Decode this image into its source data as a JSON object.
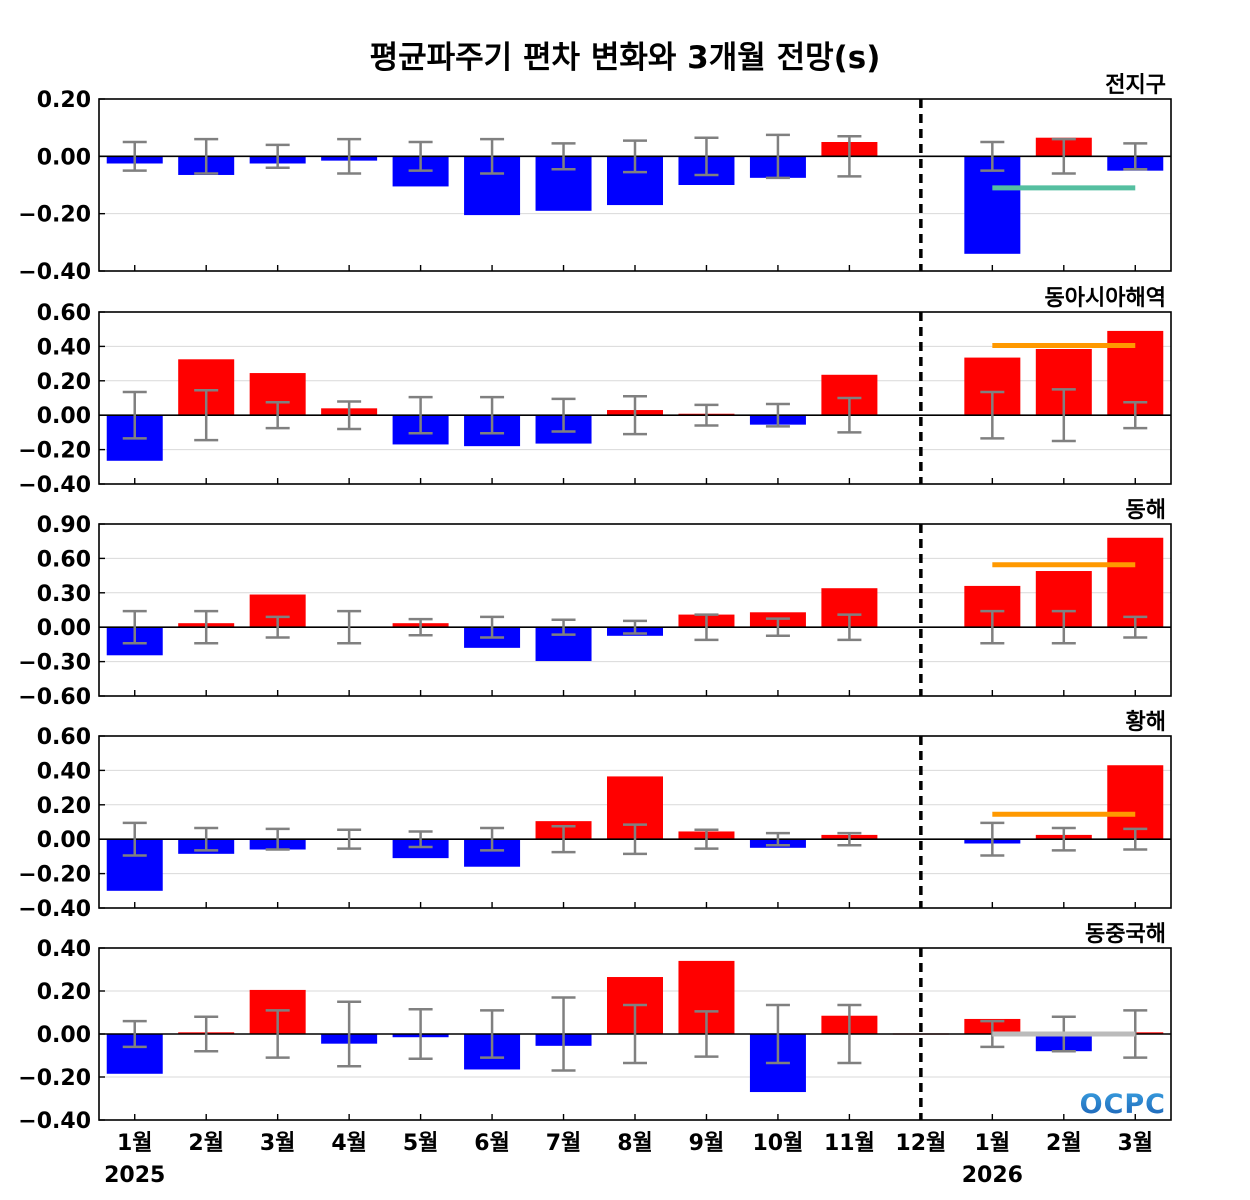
{
  "chart_data": {
    "type": "bar",
    "title": "평균파주기 편차 변화와 3개월 전망(s)",
    "categories": [
      "1월",
      "2월",
      "3월",
      "4월",
      "5월",
      "6월",
      "7월",
      "8월",
      "9월",
      "10월",
      "11월",
      "12월",
      "1월",
      "2월",
      "3월"
    ],
    "years": [
      {
        "label": "2025",
        "category_index": 0
      },
      {
        "label": "2026",
        "category_index": 12
      }
    ],
    "forecast_divider_after_index": 11,
    "colors": {
      "positive": "#ff0000",
      "negative": "#0000ff",
      "errorbar": "#808080",
      "forecast_warm": "#ff9900",
      "forecast_cool": "#55bfa0",
      "forecast_neutral": "#bbbbbb",
      "grid": "#d9d9d9"
    },
    "panels": [
      {
        "name": "전지구",
        "ylim": [
          -0.4,
          0.2
        ],
        "yticks": [
          -0.4,
          -0.2,
          0.0,
          0.2
        ],
        "ytick_labels": [
          "−0.40",
          "−0.20",
          "0.00",
          "0.20"
        ],
        "values": [
          -0.025,
          -0.065,
          -0.025,
          -0.015,
          -0.105,
          -0.205,
          -0.19,
          -0.17,
          -0.1,
          -0.075,
          0.05,
          0.0,
          -0.34,
          0.065,
          -0.05
        ],
        "error": [
          0.05,
          0.06,
          0.04,
          0.06,
          0.05,
          0.06,
          0.045,
          0.055,
          0.065,
          0.075,
          0.07,
          null,
          0.05,
          0.06,
          0.045
        ],
        "forecast_line": {
          "value": -0.11,
          "color": "#55bfa0"
        }
      },
      {
        "name": "동아시아해역",
        "ylim": [
          -0.4,
          0.6
        ],
        "yticks": [
          -0.4,
          -0.2,
          0.0,
          0.2,
          0.4,
          0.6
        ],
        "ytick_labels": [
          "−0.40",
          "−0.20",
          "0.00",
          "0.20",
          "0.40",
          "0.60"
        ],
        "values": [
          -0.265,
          0.325,
          0.245,
          0.04,
          -0.17,
          -0.18,
          -0.165,
          0.03,
          0.005,
          -0.055,
          0.235,
          0.0,
          0.335,
          0.385,
          0.49
        ],
        "error": [
          0.135,
          0.145,
          0.075,
          0.08,
          0.105,
          0.105,
          0.095,
          0.11,
          0.06,
          0.065,
          0.1,
          null,
          0.135,
          0.15,
          0.075
        ],
        "forecast_line": {
          "value": 0.405,
          "color": "#ff9900"
        }
      },
      {
        "name": "동해",
        "ylim": [
          -0.6,
          0.9
        ],
        "yticks": [
          -0.6,
          -0.3,
          0.0,
          0.3,
          0.6,
          0.9
        ],
        "ytick_labels": [
          "−0.60",
          "−0.30",
          "0.00",
          "0.30",
          "0.60",
          "0.90"
        ],
        "values": [
          -0.245,
          0.035,
          0.285,
          0.0,
          0.035,
          -0.18,
          -0.295,
          -0.075,
          0.11,
          0.13,
          0.34,
          0.0,
          0.36,
          0.49,
          0.78
        ],
        "error": [
          0.14,
          0.14,
          0.09,
          0.14,
          0.07,
          0.09,
          0.065,
          0.055,
          0.11,
          0.075,
          0.11,
          null,
          0.14,
          0.14,
          0.09
        ],
        "forecast_line": {
          "value": 0.545,
          "color": "#ff9900"
        }
      },
      {
        "name": "황해",
        "ylim": [
          -0.4,
          0.6
        ],
        "yticks": [
          -0.4,
          -0.2,
          0.0,
          0.2,
          0.4,
          0.6
        ],
        "ytick_labels": [
          "−0.40",
          "−0.20",
          "0.00",
          "0.20",
          "0.40",
          "0.60"
        ],
        "values": [
          -0.3,
          -0.085,
          -0.06,
          0.0,
          -0.11,
          -0.16,
          0.105,
          0.365,
          0.045,
          -0.05,
          0.025,
          0.0,
          -0.025,
          0.025,
          0.43
        ],
        "error": [
          0.095,
          0.065,
          0.06,
          0.055,
          0.045,
          0.065,
          0.075,
          0.085,
          0.055,
          0.035,
          0.035,
          null,
          0.095,
          0.065,
          0.06
        ],
        "forecast_line": {
          "value": 0.145,
          "color": "#ff9900"
        }
      },
      {
        "name": "동중국해",
        "ylim": [
          -0.4,
          0.4
        ],
        "yticks": [
          -0.4,
          -0.2,
          0.0,
          0.2,
          0.4
        ],
        "ytick_labels": [
          "−0.40",
          "−0.20",
          "0.00",
          "0.20",
          "0.40"
        ],
        "values": [
          -0.185,
          0.005,
          0.205,
          -0.045,
          -0.015,
          -0.165,
          -0.055,
          0.265,
          0.34,
          -0.27,
          0.085,
          0.0,
          0.07,
          -0.08,
          0.005
        ],
        "error": [
          0.06,
          0.08,
          0.11,
          0.15,
          0.115,
          0.11,
          0.17,
          0.135,
          0.105,
          0.135,
          0.135,
          null,
          0.06,
          0.08,
          0.11
        ],
        "forecast_line": {
          "value": 0.0,
          "color": "#bbbbbb"
        }
      }
    ]
  },
  "logo": {
    "text": "OCPC",
    "colors": [
      "#1a5fb4",
      "#3aa0e0"
    ]
  }
}
